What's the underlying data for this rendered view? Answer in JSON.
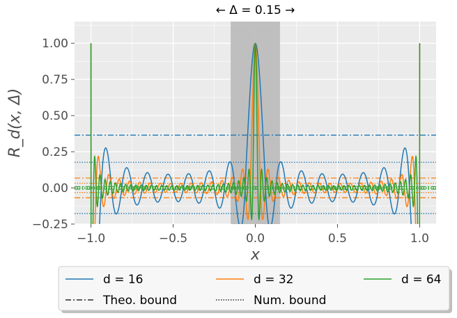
{
  "chart_data": {
    "type": "line",
    "xlabel": "x",
    "ylabel": "R_d(x, Δ)",
    "xlim": [
      -1.1,
      1.1
    ],
    "ylim": [
      -0.25,
      1.15
    ],
    "xticks": [
      "−1.0",
      "−0.5",
      "0.0",
      "0.5",
      "1.0"
    ],
    "xtick_values": [
      -1.0,
      -0.5,
      0.0,
      0.5,
      1.0
    ],
    "yticks": [
      "−0.25",
      "0.00",
      "0.25",
      "0.50",
      "0.75",
      "1.00"
    ],
    "ytick_values": [
      -0.25,
      0.0,
      0.25,
      0.5,
      0.75,
      1.0
    ],
    "grid": true,
    "background": "#ebebeb",
    "annotation": "← Δ = 0.15 →",
    "shaded_band": {
      "x_start": -0.15,
      "x_end": 0.15,
      "color": "#bdbdbd"
    },
    "series": [
      {
        "name": "d = 16",
        "color": "#1f77b4",
        "d": 16,
        "theo_bound": 0.365,
        "num_bound": 0.177
      },
      {
        "name": "d = 32",
        "color": "#ff7f0e",
        "d": 32,
        "theo_bound": 0.068,
        "num_bound": 0.032
      },
      {
        "name": "d = 64",
        "color": "#2ca02c",
        "d": 64,
        "theo_bound": 0.008,
        "num_bound": 0.004
      }
    ],
    "legend": {
      "placement": "bottom",
      "entries": [
        "d = 16",
        "d = 32",
        "d = 64",
        "Theo. bound",
        "Num. bound"
      ]
    }
  }
}
